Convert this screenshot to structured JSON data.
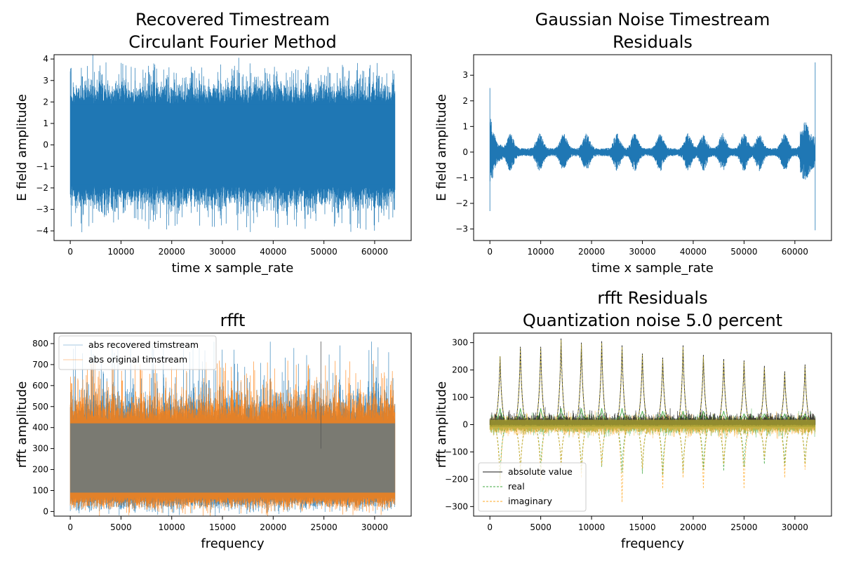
{
  "chart_data": [
    {
      "type": "line",
      "title": [
        "Recovered Timestream",
        "Circulant Fourier Method"
      ],
      "xlabel": "time x sample_rate",
      "ylabel": "E field amplitude",
      "xlim": [
        -3200,
        67200
      ],
      "ylim": [
        -4.45,
        4.2
      ],
      "xticks": [
        0,
        10000,
        20000,
        30000,
        40000,
        50000,
        60000
      ],
      "yticks": [
        -4,
        -3,
        -2,
        -1,
        0,
        1,
        2,
        3,
        4
      ],
      "grid": false,
      "color": "#1f77b4",
      "series": [
        {
          "x_range": [
            0,
            64000
          ],
          "envelope_upper": 2.0,
          "envelope_lower": -2.0,
          "peak_max": 3.85,
          "peak_min": -4.1
        }
      ]
    },
    {
      "type": "line",
      "title": [
        "Gaussian Noise Timestream",
        "Residuals"
      ],
      "xlabel": "time x sample_rate",
      "ylabel": "E field amplitude",
      "xlim": [
        -3200,
        67200
      ],
      "ylim": [
        -3.45,
        3.8
      ],
      "xticks": [
        0,
        10000,
        20000,
        30000,
        40000,
        50000,
        60000
      ],
      "yticks": [
        -3,
        -2,
        -1,
        0,
        1,
        2,
        3
      ],
      "grid": false,
      "color": "#1f77b4",
      "series": [
        {
          "x_range": [
            0,
            64000
          ],
          "peak_max": 3.5,
          "peak_min": -3.05,
          "start_spike": [
            2.5,
            -2.3
          ]
        }
      ]
    },
    {
      "type": "line",
      "title": [
        "rfft"
      ],
      "xlabel": "frequency",
      "ylabel": "rfft amplitude",
      "xlim": [
        -1600,
        33600
      ],
      "ylim": [
        -22,
        850
      ],
      "xticks": [
        0,
        5000,
        10000,
        15000,
        20000,
        25000,
        30000
      ],
      "yticks": [
        0,
        100,
        200,
        300,
        400,
        500,
        600,
        700,
        800
      ],
      "grid": false,
      "legend": "upper-left",
      "series": [
        {
          "name": "abs recovered timstream",
          "color": "#1f77b4",
          "x_range": [
            0,
            32000
          ],
          "band": [
            60,
            520
          ],
          "peak_max": 810
        },
        {
          "name": "abs original timstream",
          "color": "#ff7f0e",
          "x_range": [
            0,
            32000
          ],
          "band": [
            60,
            520
          ],
          "peak_max": 720
        }
      ]
    },
    {
      "type": "line",
      "title": [
        "rfft Residuals",
        "Quantization noise 5.0 percent"
      ],
      "xlabel": "frequency",
      "ylabel": "rfft amplitude",
      "xlim": [
        -1600,
        33600
      ],
      "ylim": [
        -335,
        335
      ],
      "xticks": [
        0,
        5000,
        10000,
        15000,
        20000,
        25000,
        30000
      ],
      "yticks": [
        -300,
        -200,
        -100,
        0,
        100,
        200,
        300
      ],
      "grid": false,
      "legend": "lower-left",
      "peak_frequencies": [
        1000,
        3000,
        5000,
        7000,
        9000,
        11000,
        13000,
        15000,
        17000,
        19000,
        21000,
        23000,
        25000,
        27000,
        29000,
        31000
      ],
      "series": [
        {
          "name": "absolute value",
          "color": "#000000",
          "style": "solid",
          "peaks": [
            250,
            285,
            285,
            315,
            300,
            305,
            290,
            260,
            245,
            290,
            255,
            240,
            235,
            215,
            195,
            220
          ]
        },
        {
          "name": "real",
          "color": "#2ca02c",
          "style": "dashed",
          "peaks": [
            60,
            60,
            60,
            60,
            60,
            60,
            60,
            50,
            50,
            50,
            50,
            50,
            40,
            40,
            40,
            40
          ],
          "troughs": [
            -200,
            -175,
            -165,
            -150,
            -175,
            -155,
            -175,
            -180,
            -185,
            -175,
            -165,
            -170,
            -155,
            -145,
            -150,
            -145
          ]
        },
        {
          "name": "imaginary",
          "color": "#ff9f0e",
          "style": "dashed",
          "peaks": [
            250,
            280,
            280,
            310,
            295,
            300,
            285,
            255,
            240,
            285,
            250,
            235,
            230,
            210,
            190,
            215
          ],
          "troughs": [
            -230,
            -175,
            -205,
            -150,
            -195,
            -150,
            -285,
            -160,
            -235,
            -195,
            -235,
            -145,
            -235,
            -125,
            -195,
            -165
          ]
        }
      ]
    }
  ]
}
